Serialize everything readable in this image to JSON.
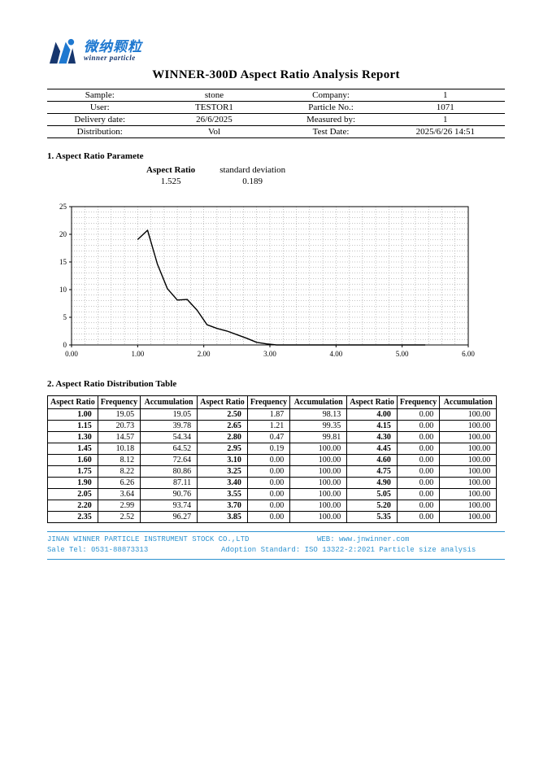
{
  "logo": {
    "brand_cn": "微纳颗粒",
    "brand_en": "winner particle"
  },
  "title": "WINNER-300D Aspect Ratio Analysis Report",
  "info_rows": [
    {
      "label1": "Sample:",
      "value1": "stone",
      "label2": "Company:",
      "value2": "1"
    },
    {
      "label1": "User:",
      "value1": "TESTOR1",
      "label2": "Particle No.:",
      "value2": "1071"
    },
    {
      "label1": "Delivery date:",
      "value1": "26/6/2025",
      "label2": "Measured by:",
      "value2": "1"
    },
    {
      "label1": "Distribution:",
      "value1": "Vol",
      "label2": "Test Date:",
      "value2": "2025/6/26 14:51"
    }
  ],
  "section1": {
    "heading": "1. Aspect Ratio Paramete",
    "param_label": "Aspect Ratio",
    "param_value": "1.525",
    "std_label": "standard deviation",
    "std_value": "0.189"
  },
  "chart_data": {
    "type": "line",
    "title": "",
    "xlabel": "",
    "ylabel": "",
    "xlim": [
      0,
      6
    ],
    "ylim": [
      0,
      25
    ],
    "x_ticks": [
      "0.00",
      "1.00",
      "2.00",
      "3.00",
      "4.00",
      "5.00",
      "6.00"
    ],
    "y_ticks": [
      0,
      5,
      10,
      15,
      20,
      25
    ],
    "grid": "dotted",
    "legend": "none",
    "x": [
      1.0,
      1.15,
      1.3,
      1.45,
      1.6,
      1.75,
      1.9,
      2.05,
      2.2,
      2.35,
      2.5,
      2.65,
      2.8,
      2.95,
      3.1,
      3.25,
      3.4,
      3.55,
      3.7,
      3.85,
      4.0,
      4.15,
      4.3,
      4.45,
      4.6,
      4.75,
      4.9,
      5.05,
      5.2,
      5.35
    ],
    "y": [
      19.05,
      20.73,
      14.57,
      10.18,
      8.12,
      8.22,
      6.26,
      3.64,
      2.99,
      2.52,
      1.87,
      1.21,
      0.47,
      0.19,
      0,
      0,
      0,
      0,
      0,
      0,
      0,
      0,
      0,
      0,
      0,
      0,
      0,
      0,
      0,
      0
    ]
  },
  "section2": {
    "heading": "2. Aspect Ratio Distribution Table"
  },
  "table": {
    "headers": [
      "Aspect Ratio",
      "Frequency",
      "Accumulation",
      "Aspect Ratio",
      "Frequency",
      "Accumulation",
      "Aspect Ratio",
      "Frequency",
      "Accumulation"
    ],
    "rows": [
      [
        "1.00",
        "19.05",
        "19.05",
        "2.50",
        "1.87",
        "98.13",
        "4.00",
        "0.00",
        "100.00"
      ],
      [
        "1.15",
        "20.73",
        "39.78",
        "2.65",
        "1.21",
        "99.35",
        "4.15",
        "0.00",
        "100.00"
      ],
      [
        "1.30",
        "14.57",
        "54.34",
        "2.80",
        "0.47",
        "99.81",
        "4.30",
        "0.00",
        "100.00"
      ],
      [
        "1.45",
        "10.18",
        "64.52",
        "2.95",
        "0.19",
        "100.00",
        "4.45",
        "0.00",
        "100.00"
      ],
      [
        "1.60",
        "8.12",
        "72.64",
        "3.10",
        "0.00",
        "100.00",
        "4.60",
        "0.00",
        "100.00"
      ],
      [
        "1.75",
        "8.22",
        "80.86",
        "3.25",
        "0.00",
        "100.00",
        "4.75",
        "0.00",
        "100.00"
      ],
      [
        "1.90",
        "6.26",
        "87.11",
        "3.40",
        "0.00",
        "100.00",
        "4.90",
        "0.00",
        "100.00"
      ],
      [
        "2.05",
        "3.64",
        "90.76",
        "3.55",
        "0.00",
        "100.00",
        "5.05",
        "0.00",
        "100.00"
      ],
      [
        "2.20",
        "2.99",
        "93.74",
        "3.70",
        "0.00",
        "100.00",
        "5.20",
        "0.00",
        "100.00"
      ],
      [
        "2.35",
        "2.52",
        "96.27",
        "3.85",
        "0.00",
        "100.00",
        "5.35",
        "0.00",
        "100.00"
      ]
    ]
  },
  "footer": {
    "company": "JINAN WINNER PARTICLE INSTRUMENT STOCK CO.,LTD",
    "web": "WEB: www.jnwinner.com",
    "tel": "Sale Tel: 0531-88873313",
    "standard": "Adoption Standard: ISO 13322-2:2021 Particle size analysis"
  }
}
